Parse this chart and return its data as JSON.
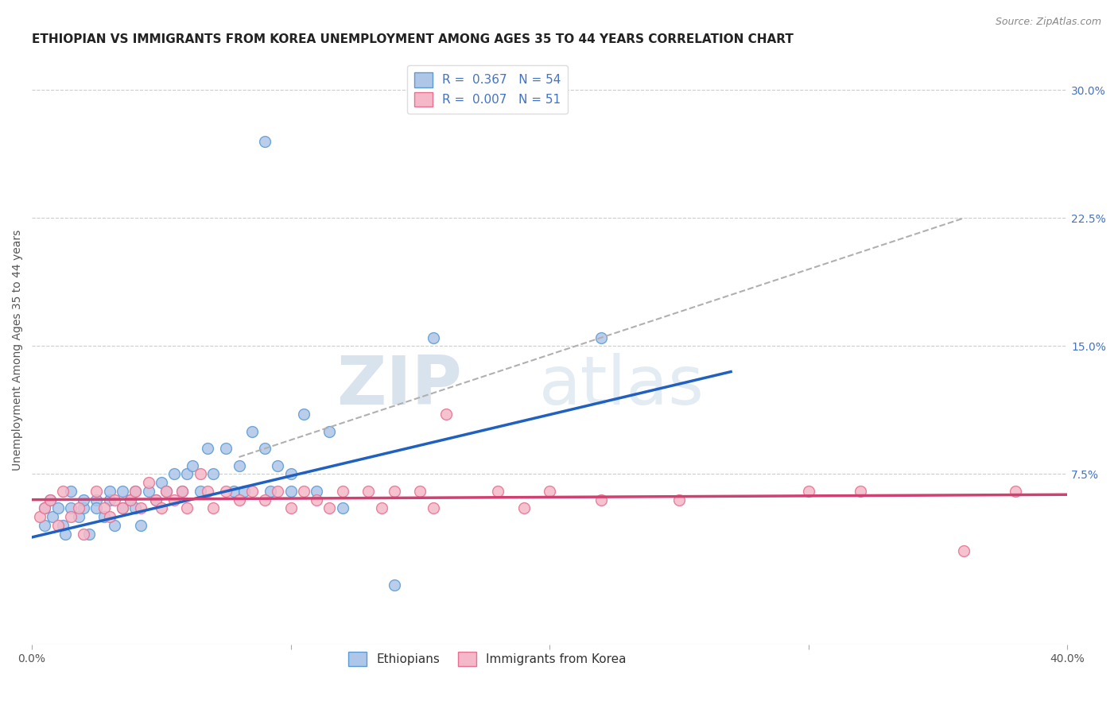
{
  "title": "ETHIOPIAN VS IMMIGRANTS FROM KOREA UNEMPLOYMENT AMONG AGES 35 TO 44 YEARS CORRELATION CHART",
  "source": "Source: ZipAtlas.com",
  "ylabel": "Unemployment Among Ages 35 to 44 years",
  "xlim": [
    0,
    0.4
  ],
  "ylim": [
    -0.025,
    0.32
  ],
  "xticks": [
    0.0,
    0.1,
    0.2,
    0.3,
    0.4
  ],
  "xticklabels": [
    "0.0%",
    "",
    "",
    "",
    "40.0%"
  ],
  "yticks_right": [
    0.075,
    0.15,
    0.225,
    0.3
  ],
  "yticklabels_right": [
    "7.5%",
    "15.0%",
    "22.5%",
    "30.0%"
  ],
  "legend_entries": [
    {
      "label": "R =  0.367   N = 54",
      "color": "#aec6e8",
      "edgecolor": "#5b9bd5"
    },
    {
      "label": "R =  0.007   N = 51",
      "color": "#f4b8c8",
      "edgecolor": "#e87090"
    }
  ],
  "legend_labels_bottom": [
    "Ethiopians",
    "Immigrants from Korea"
  ],
  "watermark_zip": "ZIP",
  "watermark_atlas": "atlas",
  "blue_scatter": {
    "x": [
      0.005,
      0.005,
      0.007,
      0.008,
      0.01,
      0.012,
      0.013,
      0.015,
      0.015,
      0.018,
      0.02,
      0.02,
      0.022,
      0.025,
      0.025,
      0.028,
      0.03,
      0.03,
      0.032,
      0.035,
      0.035,
      0.038,
      0.04,
      0.04,
      0.042,
      0.045,
      0.048,
      0.05,
      0.052,
      0.055,
      0.058,
      0.06,
      0.062,
      0.065,
      0.068,
      0.07,
      0.075,
      0.078,
      0.08,
      0.082,
      0.085,
      0.09,
      0.092,
      0.095,
      0.1,
      0.1,
      0.105,
      0.11,
      0.115,
      0.12,
      0.14,
      0.155,
      0.22,
      0.09
    ],
    "y": [
      0.055,
      0.045,
      0.06,
      0.05,
      0.055,
      0.045,
      0.04,
      0.055,
      0.065,
      0.05,
      0.055,
      0.06,
      0.04,
      0.06,
      0.055,
      0.05,
      0.06,
      0.065,
      0.045,
      0.065,
      0.055,
      0.06,
      0.065,
      0.055,
      0.045,
      0.065,
      0.06,
      0.07,
      0.065,
      0.075,
      0.065,
      0.075,
      0.08,
      0.065,
      0.09,
      0.075,
      0.09,
      0.065,
      0.08,
      0.065,
      0.1,
      0.09,
      0.065,
      0.08,
      0.075,
      0.065,
      0.11,
      0.065,
      0.1,
      0.055,
      0.01,
      0.155,
      0.155,
      0.27
    ]
  },
  "pink_scatter": {
    "x": [
      0.003,
      0.005,
      0.007,
      0.01,
      0.012,
      0.015,
      0.018,
      0.02,
      0.025,
      0.028,
      0.03,
      0.032,
      0.035,
      0.038,
      0.04,
      0.042,
      0.045,
      0.048,
      0.05,
      0.052,
      0.055,
      0.058,
      0.06,
      0.065,
      0.068,
      0.07,
      0.075,
      0.08,
      0.085,
      0.09,
      0.095,
      0.1,
      0.105,
      0.11,
      0.115,
      0.12,
      0.13,
      0.135,
      0.14,
      0.15,
      0.155,
      0.16,
      0.18,
      0.19,
      0.2,
      0.22,
      0.25,
      0.3,
      0.32,
      0.36,
      0.38
    ],
    "y": [
      0.05,
      0.055,
      0.06,
      0.045,
      0.065,
      0.05,
      0.055,
      0.04,
      0.065,
      0.055,
      0.05,
      0.06,
      0.055,
      0.06,
      0.065,
      0.055,
      0.07,
      0.06,
      0.055,
      0.065,
      0.06,
      0.065,
      0.055,
      0.075,
      0.065,
      0.055,
      0.065,
      0.06,
      0.065,
      0.06,
      0.065,
      0.055,
      0.065,
      0.06,
      0.055,
      0.065,
      0.065,
      0.055,
      0.065,
      0.065,
      0.055,
      0.11,
      0.065,
      0.055,
      0.065,
      0.06,
      0.06,
      0.065,
      0.065,
      0.03,
      0.065
    ]
  },
  "blue_line": {
    "x0": 0.0,
    "y0": 0.038,
    "x1": 0.27,
    "y1": 0.135
  },
  "pink_line": {
    "x0": 0.0,
    "y0": 0.06,
    "x1": 0.4,
    "y1": 0.063
  },
  "gray_dashed_line": {
    "x0": 0.08,
    "y0": 0.085,
    "x1": 0.36,
    "y1": 0.225
  },
  "scatter_size": 100,
  "blue_color": "#aec6e8",
  "blue_edge_color": "#5b9bd5",
  "pink_color": "#f4b8c8",
  "pink_edge_color": "#e87090",
  "blue_line_color": "#2060c0",
  "pink_line_color": "#d04070",
  "gray_dashed_color": "#b0b0b0",
  "grid_color": "#cccccc",
  "background_color": "#ffffff",
  "title_fontsize": 11,
  "axis_label_fontsize": 10,
  "tick_fontsize": 10,
  "legend_fontsize": 11,
  "source_fontsize": 9
}
